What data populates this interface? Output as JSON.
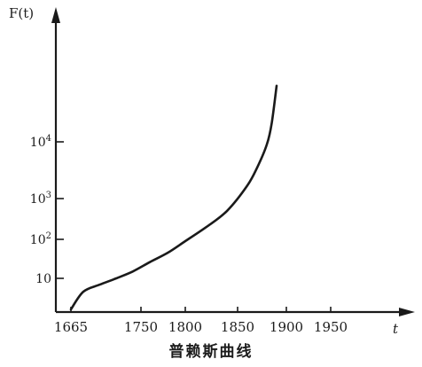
{
  "chart_data": {
    "type": "line",
    "title": "普赖斯曲线",
    "ylabel": "F(t)",
    "xlabel": "t",
    "x_scale": "linear",
    "y_scale": "log",
    "x_ticks": [
      {
        "value": 1665,
        "label": "1665"
      },
      {
        "value": 1750,
        "label": "1750"
      },
      {
        "value": 1800,
        "label": "1800"
      },
      {
        "value": 1850,
        "label": "1850"
      },
      {
        "value": 1900,
        "label": "1900"
      },
      {
        "value": 1950,
        "label": "1950"
      }
    ],
    "y_ticks": [
      {
        "value": 10,
        "label": "10",
        "base": "10",
        "exp": ""
      },
      {
        "value": 100,
        "label": "10²",
        "base": "10",
        "exp": "2"
      },
      {
        "value": 1000,
        "label": "10³",
        "base": "10",
        "exp": "3"
      },
      {
        "value": 10000,
        "label": "10⁴",
        "base": "10",
        "exp": "4"
      }
    ],
    "series": [
      {
        "x": [
          1665,
          1680,
          1700,
          1720,
          1740,
          1760,
          1780,
          1800,
          1820,
          1840,
          1860,
          1870,
          1880,
          1885,
          1890
        ],
        "y": [
          1.2,
          4,
          6.5,
          10,
          15,
          26,
          45,
          90,
          200,
          500,
          1700,
          3500,
          9000,
          20000,
          80000
        ]
      }
    ],
    "color": "#1a1a1a"
  }
}
